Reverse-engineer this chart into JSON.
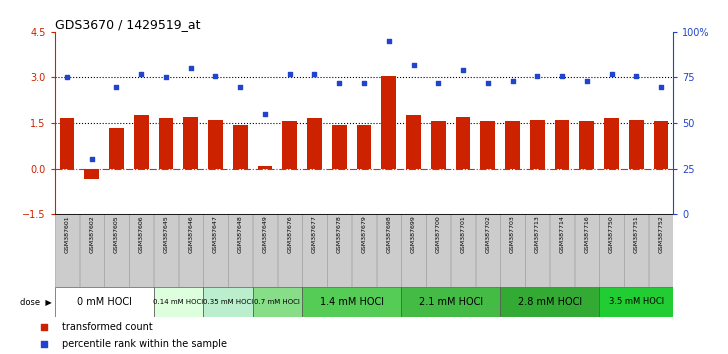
{
  "title": "GDS3670 / 1429519_at",
  "samples": [
    "GSM387601",
    "GSM387602",
    "GSM387605",
    "GSM387606",
    "GSM387645",
    "GSM387646",
    "GSM387647",
    "GSM387648",
    "GSM387649",
    "GSM387676",
    "GSM387677",
    "GSM387678",
    "GSM387679",
    "GSM387698",
    "GSM387699",
    "GSM387700",
    "GSM387701",
    "GSM387702",
    "GSM387703",
    "GSM387713",
    "GSM387714",
    "GSM387716",
    "GSM387750",
    "GSM387751",
    "GSM387752"
  ],
  "transformed_count": [
    1.65,
    -0.35,
    1.35,
    1.75,
    1.65,
    1.7,
    1.6,
    1.45,
    0.1,
    1.55,
    1.65,
    1.45,
    1.45,
    3.05,
    1.75,
    1.55,
    1.7,
    1.55,
    1.55,
    1.6,
    1.6,
    1.55,
    1.65,
    1.6,
    1.55
  ],
  "percentile_rank": [
    75,
    30,
    70,
    77,
    75,
    80,
    76,
    70,
    55,
    77,
    77,
    72,
    72,
    95,
    82,
    72,
    79,
    72,
    73,
    76,
    76,
    73,
    77,
    76,
    70
  ],
  "dose_groups": [
    {
      "label": "0 mM HOCl",
      "start": 0,
      "end": 4,
      "color": "#ffffff"
    },
    {
      "label": "0.14 mM HOCl",
      "start": 4,
      "end": 6,
      "color": "#d8f5d8"
    },
    {
      "label": "0.35 mM HOCl",
      "start": 6,
      "end": 8,
      "color": "#c0ecc0"
    },
    {
      "label": "0.7 mM HOCl",
      "start": 8,
      "end": 10,
      "color": "#66dd55"
    },
    {
      "label": "1.4 mM HOCl",
      "start": 10,
      "end": 14,
      "color": "#44cc44"
    },
    {
      "label": "2.1 mM HOCl",
      "start": 14,
      "end": 18,
      "color": "#33bb33"
    },
    {
      "label": "2.8 mM HOCl",
      "start": 18,
      "end": 22,
      "color": "#22aa22"
    },
    {
      "label": "3.5 mM HOCl",
      "start": 22,
      "end": 25,
      "color": "#11cc11"
    }
  ],
  "bar_color": "#cc2200",
  "dot_color": "#2244cc",
  "ylim_left": [
    -1.5,
    4.5
  ],
  "ylim_right": [
    0,
    100
  ],
  "yticks_left": [
    -1.5,
    0.0,
    1.5,
    3.0,
    4.5
  ],
  "yticks_right": [
    0,
    25,
    50,
    75,
    100
  ],
  "hlines": [
    {
      "y": 0.0,
      "style": "dashdot",
      "color": "#bb3333",
      "lw": 0.8
    },
    {
      "y": 1.5,
      "style": "dotted",
      "color": "#000000",
      "lw": 0.8
    },
    {
      "y": 3.0,
      "style": "dotted",
      "color": "#000000",
      "lw": 0.8
    }
  ],
  "legend_labels": [
    "transformed count",
    "percentile rank within the sample"
  ],
  "legend_colors": [
    "#cc2200",
    "#2244cc"
  ],
  "dose_label": "dose"
}
